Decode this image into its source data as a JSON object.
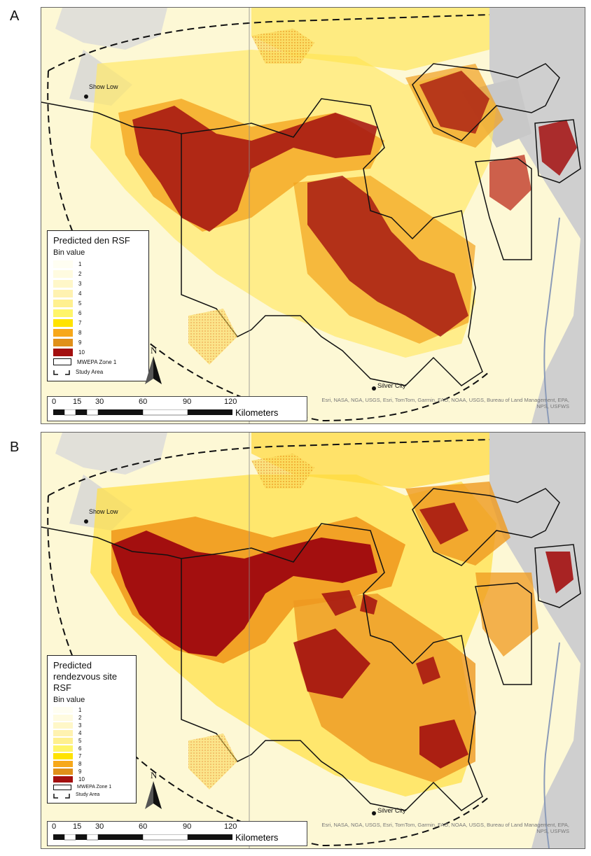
{
  "panels": [
    {
      "letter": "A",
      "legend": {
        "title": "Predicted den RSF",
        "subtitle": "Bin value",
        "bins": [
          "1",
          "2",
          "3",
          "4",
          "5",
          "6",
          "7",
          "8",
          "9",
          "10"
        ],
        "zone_label": "MWEPA Zone 1",
        "study_label": "Study Area"
      }
    },
    {
      "letter": "B",
      "legend": {
        "title": "Predicted rendezvous site RSF",
        "subtitle": "Bin value",
        "bins": [
          "1",
          "2",
          "3",
          "4",
          "5",
          "6",
          "7",
          "8",
          "9",
          "10"
        ],
        "zone_label": "MWEPA Zone 1",
        "study_label": "Study Area"
      }
    }
  ],
  "bin_colors": [
    "#fffef2",
    "#fffbe0",
    "#fff7c8",
    "#fff2b0",
    "#fff08f",
    "#fff56a",
    "#ffe300",
    "#f7a81a",
    "#e0901a",
    "#a30f0f"
  ],
  "cities": {
    "show_low": "Show Low",
    "silver_city": "Silver City"
  },
  "north_label": "N",
  "scale": {
    "ticks": [
      "0",
      "15",
      "30",
      "60",
      "90",
      "120"
    ],
    "unit": "Kilometers"
  },
  "attribution_line1": "Esri, NASA, NGA, USGS, Esri, TomTom, Garmin, FAO, NOAA, USGS, Bureau of Land Management, EPA,",
  "attribution_line2": "NPS, USFWS"
}
